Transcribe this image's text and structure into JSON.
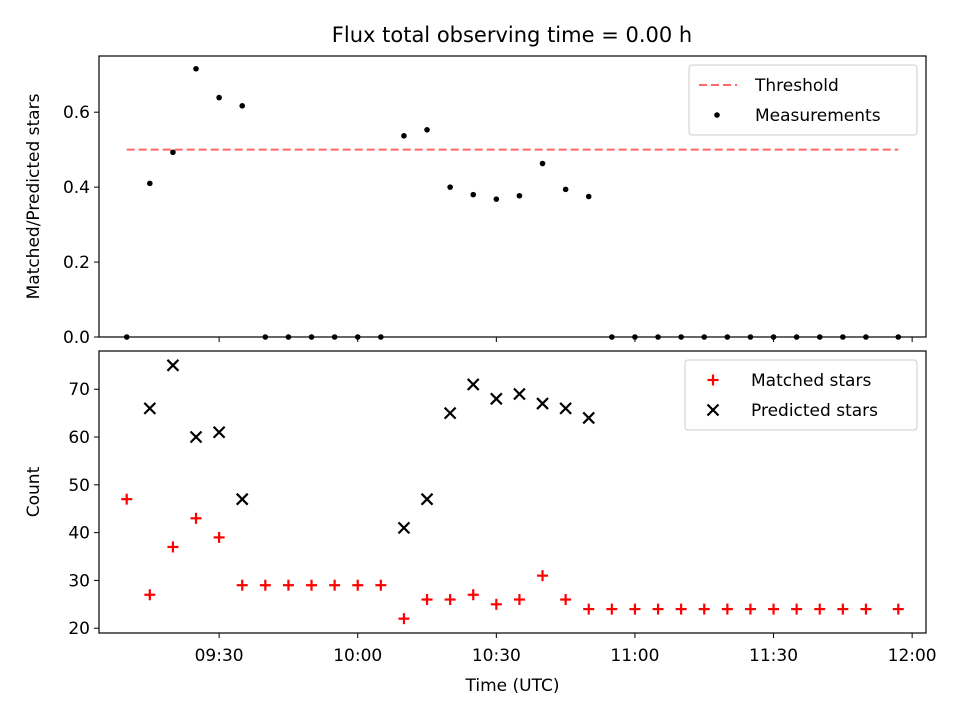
{
  "title": "Flux total observing time = 0.00 h",
  "chart_data": [
    {
      "type": "scatter",
      "ylabel": "Matched/Predicted stars",
      "xlabel": "",
      "xlim": [
        "09:04",
        "12:03"
      ],
      "ylim": [
        0,
        0.75
      ],
      "yticks": [
        0.0,
        0.2,
        0.4,
        0.6
      ],
      "ytick_labels": [
        "0.0",
        "0.2",
        "0.4",
        "0.6"
      ],
      "xticks": [
        "09:30",
        "10:00",
        "10:30",
        "11:00",
        "11:30",
        "12:00"
      ],
      "legend_position": "top-right",
      "threshold": {
        "name": "Threshold",
        "value": 0.5,
        "x_range": [
          "09:10",
          "11:57"
        ],
        "color": "#ff6666",
        "style": "dashed"
      },
      "series": [
        {
          "name": "Measurements",
          "marker": "dot",
          "color": "#000000",
          "points": [
            {
              "x": "09:10",
              "y": 0.0
            },
            {
              "x": "09:15",
              "y": 0.41
            },
            {
              "x": "09:20",
              "y": 0.493
            },
            {
              "x": "09:25",
              "y": 0.716
            },
            {
              "x": "09:30",
              "y": 0.639
            },
            {
              "x": "09:35",
              "y": 0.617
            },
            {
              "x": "09:40",
              "y": 0.0
            },
            {
              "x": "09:45",
              "y": 0.0
            },
            {
              "x": "09:50",
              "y": 0.0
            },
            {
              "x": "09:55",
              "y": 0.0
            },
            {
              "x": "10:00",
              "y": 0.0
            },
            {
              "x": "10:05",
              "y": 0.0
            },
            {
              "x": "10:10",
              "y": 0.537
            },
            {
              "x": "10:15",
              "y": 0.553
            },
            {
              "x": "10:20",
              "y": 0.4
            },
            {
              "x": "10:25",
              "y": 0.38
            },
            {
              "x": "10:30",
              "y": 0.368
            },
            {
              "x": "10:35",
              "y": 0.377
            },
            {
              "x": "10:40",
              "y": 0.463
            },
            {
              "x": "10:45",
              "y": 0.394
            },
            {
              "x": "10:50",
              "y": 0.375
            },
            {
              "x": "10:55",
              "y": 0.0
            },
            {
              "x": "11:00",
              "y": 0.0
            },
            {
              "x": "11:05",
              "y": 0.0
            },
            {
              "x": "11:10",
              "y": 0.0
            },
            {
              "x": "11:15",
              "y": 0.0
            },
            {
              "x": "11:20",
              "y": 0.0
            },
            {
              "x": "11:25",
              "y": 0.0
            },
            {
              "x": "11:30",
              "y": 0.0
            },
            {
              "x": "11:35",
              "y": 0.0
            },
            {
              "x": "11:40",
              "y": 0.0
            },
            {
              "x": "11:45",
              "y": 0.0
            },
            {
              "x": "11:50",
              "y": 0.0
            },
            {
              "x": "11:57",
              "y": 0.0
            }
          ]
        }
      ]
    },
    {
      "type": "scatter",
      "ylabel": "Count",
      "xlabel": "Time (UTC)",
      "xlim": [
        "09:04",
        "12:03"
      ],
      "ylim": [
        19,
        78
      ],
      "yticks": [
        20,
        30,
        40,
        50,
        60,
        70
      ],
      "ytick_labels": [
        "20",
        "30",
        "40",
        "50",
        "60",
        "70"
      ],
      "xticks": [
        "09:30",
        "10:00",
        "10:30",
        "11:00",
        "11:30",
        "12:00"
      ],
      "xtick_labels": [
        "09:30",
        "10:00",
        "10:30",
        "11:00",
        "11:30",
        "12:00"
      ],
      "legend_position": "top-right",
      "series": [
        {
          "name": "Matched stars",
          "marker": "plus",
          "color": "#ff0000",
          "points": [
            {
              "x": "09:10",
              "y": 47
            },
            {
              "x": "09:15",
              "y": 27
            },
            {
              "x": "09:20",
              "y": 37
            },
            {
              "x": "09:25",
              "y": 43
            },
            {
              "x": "09:30",
              "y": 39
            },
            {
              "x": "09:35",
              "y": 29
            },
            {
              "x": "09:40",
              "y": 29
            },
            {
              "x": "09:45",
              "y": 29
            },
            {
              "x": "09:50",
              "y": 29
            },
            {
              "x": "09:55",
              "y": 29
            },
            {
              "x": "10:00",
              "y": 29
            },
            {
              "x": "10:05",
              "y": 29
            },
            {
              "x": "10:10",
              "y": 22
            },
            {
              "x": "10:15",
              "y": 26
            },
            {
              "x": "10:20",
              "y": 26
            },
            {
              "x": "10:25",
              "y": 27
            },
            {
              "x": "10:30",
              "y": 25
            },
            {
              "x": "10:35",
              "y": 26
            },
            {
              "x": "10:40",
              "y": 31
            },
            {
              "x": "10:45",
              "y": 26
            },
            {
              "x": "10:50",
              "y": 24
            },
            {
              "x": "10:55",
              "y": 24
            },
            {
              "x": "11:00",
              "y": 24
            },
            {
              "x": "11:05",
              "y": 24
            },
            {
              "x": "11:10",
              "y": 24
            },
            {
              "x": "11:15",
              "y": 24
            },
            {
              "x": "11:20",
              "y": 24
            },
            {
              "x": "11:25",
              "y": 24
            },
            {
              "x": "11:30",
              "y": 24
            },
            {
              "x": "11:35",
              "y": 24
            },
            {
              "x": "11:40",
              "y": 24
            },
            {
              "x": "11:45",
              "y": 24
            },
            {
              "x": "11:50",
              "y": 24
            },
            {
              "x": "11:57",
              "y": 24
            }
          ]
        },
        {
          "name": "Predicted stars",
          "marker": "x",
          "color": "#000000",
          "points": [
            {
              "x": "09:15",
              "y": 66
            },
            {
              "x": "09:20",
              "y": 75
            },
            {
              "x": "09:25",
              "y": 60
            },
            {
              "x": "09:30",
              "y": 61
            },
            {
              "x": "09:35",
              "y": 47
            },
            {
              "x": "10:10",
              "y": 41
            },
            {
              "x": "10:15",
              "y": 47
            },
            {
              "x": "10:20",
              "y": 65
            },
            {
              "x": "10:25",
              "y": 71
            },
            {
              "x": "10:30",
              "y": 68
            },
            {
              "x": "10:35",
              "y": 69
            },
            {
              "x": "10:40",
              "y": 67
            },
            {
              "x": "10:45",
              "y": 66
            },
            {
              "x": "10:50",
              "y": 64
            }
          ]
        }
      ]
    }
  ]
}
